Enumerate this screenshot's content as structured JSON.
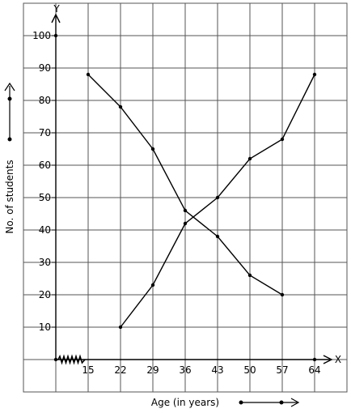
{
  "chart_data": {
    "type": "line",
    "x_ticks": [
      15,
      22,
      29,
      36,
      43,
      50,
      57,
      64
    ],
    "y_ticks": [
      10,
      20,
      30,
      40,
      50,
      60,
      70,
      80,
      90,
      100
    ],
    "xlim": [
      8,
      64
    ],
    "ylim": [
      0,
      100
    ],
    "grid": true,
    "xlabel": "Age (in years)",
    "ylabel": "No. of students",
    "x_axis_letter": "X",
    "y_axis_letter": "Y",
    "series": [
      {
        "x": [
          15,
          22,
          29,
          36,
          43,
          50,
          57
        ],
        "values": [
          88,
          78,
          65,
          46,
          38,
          26,
          20
        ]
      },
      {
        "x": [
          22,
          29,
          36,
          43,
          50,
          57,
          64
        ],
        "values": [
          10,
          23,
          42,
          50,
          62,
          68,
          88
        ]
      }
    ]
  },
  "colors": {
    "line": "#000000",
    "grid": "#555555"
  }
}
